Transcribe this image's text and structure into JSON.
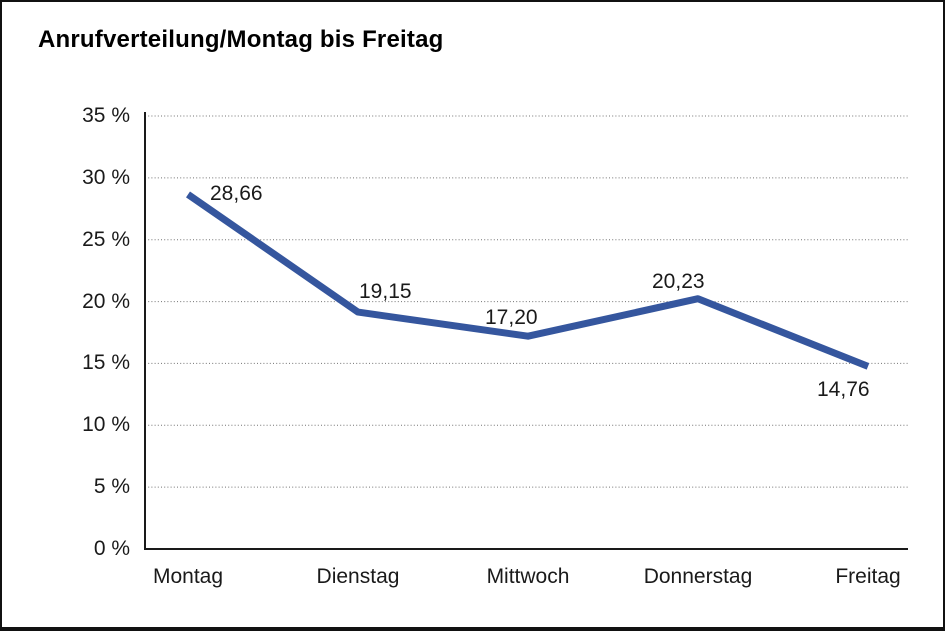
{
  "frame": {
    "background": "#ffffff",
    "border_color": "#111111"
  },
  "chart_data": {
    "type": "line",
    "title": "Anrufverteilung/Montag bis Freitag",
    "categories": [
      "Montag",
      "Dienstag",
      "Mittwoch",
      "Donnerstag",
      "Freitag"
    ],
    "values": [
      28.66,
      19.15,
      17.2,
      20.23,
      14.76
    ],
    "value_labels": [
      "28,66",
      "19,15",
      "17,20",
      "20,23",
      "14,76"
    ],
    "y_ticks": [
      0,
      5,
      10,
      15,
      20,
      25,
      30,
      35
    ],
    "y_tick_labels": [
      "0 %",
      "5 %",
      "10 %",
      "15 %",
      "20 %",
      "25 %",
      "30 %",
      "35 %"
    ],
    "ylim": [
      0,
      35
    ],
    "xlabel": "",
    "ylabel": "",
    "grid": "horizontal-dotted",
    "legend": "none",
    "line_color": "#35569E",
    "gridline_color": "#737373",
    "axis_color": "#1a1a1a",
    "text_color": "#1a1a1a"
  }
}
